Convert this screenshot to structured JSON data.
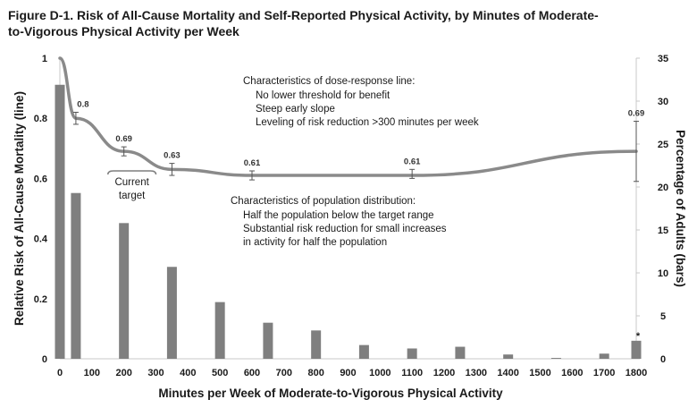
{
  "figure_title_line1": "Figure D-1. Risk of All-Cause Mortality and Self-Reported Physical Activity, by Minutes of Moderate-",
  "figure_title_line2": "to-Vigorous Physical Activity per Week",
  "chart_data": {
    "type": "bar",
    "xlabel": "Minutes per Week of Moderate-to-Vigorous Physical Activity",
    "ylabel_left": "Relative Risk of All-Cause Mortality (line)",
    "ylabel_right": "Percentage of Adults (bars)",
    "x_ticks": [
      "0",
      "100",
      "200",
      "300",
      "400",
      "500",
      "600",
      "700",
      "800",
      "900",
      "1000",
      "1100",
      "1200",
      "1300",
      "1400",
      "1500",
      "1600",
      "1700",
      "1800"
    ],
    "y_left_ticks": [
      "0",
      "0.2",
      "0.4",
      "0.6",
      "0.8",
      "1"
    ],
    "y_right_ticks": [
      "0",
      "5",
      "10",
      "15",
      "20",
      "25",
      "30",
      "35"
    ],
    "y_left_range": [
      0,
      1
    ],
    "y_right_range": [
      0,
      35
    ],
    "x_range": [
      0,
      1800
    ],
    "bars": {
      "name": "Percentage of Adults",
      "x": [
        0,
        50,
        200,
        350,
        500,
        650,
        800,
        950,
        1100,
        1250,
        1400,
        1550,
        1700,
        1800
      ],
      "values": [
        31.9,
        19.3,
        15.8,
        10.7,
        6.6,
        4.2,
        3.3,
        1.6,
        1.2,
        1.4,
        0.5,
        0.1,
        0.6,
        2.1
      ]
    },
    "line": {
      "name": "Relative Risk",
      "x": [
        0,
        50,
        200,
        350,
        600,
        1100,
        1800
      ],
      "values": [
        1,
        0.8,
        0.69,
        0.63,
        0.61,
        0.61,
        0.69
      ],
      "labels": [
        "",
        "0.8",
        "0.69",
        "0.63",
        "0.61",
        "0.61",
        "0.69"
      ],
      "err_low": [
        null,
        0.78,
        0.675,
        0.61,
        0.595,
        0.6,
        0.59
      ],
      "err_high": [
        null,
        0.82,
        0.705,
        0.65,
        0.625,
        0.63,
        0.79
      ]
    },
    "asterisk": "*",
    "current_target_label_1": "Current",
    "current_target_label_2": "target",
    "current_target_range": [
      150,
      300
    ],
    "annotation_dose": {
      "heading": "Characteristics of dose-response line:",
      "items": [
        "No lower threshold for benefit",
        "Steep early slope",
        "Leveling of risk reduction >300 minutes per week"
      ]
    },
    "annotation_population": {
      "heading": "Characteristics of population distribution:",
      "items": [
        "Half the population below the target range",
        "Substantial risk reduction for small increases",
        "in activity for half the population"
      ]
    },
    "colors": {
      "bar": "#7f7f7f",
      "line": "#8a8a8a",
      "axis": "#c8c8c8",
      "error": "#555555",
      "text": "#1a1a1a"
    }
  }
}
